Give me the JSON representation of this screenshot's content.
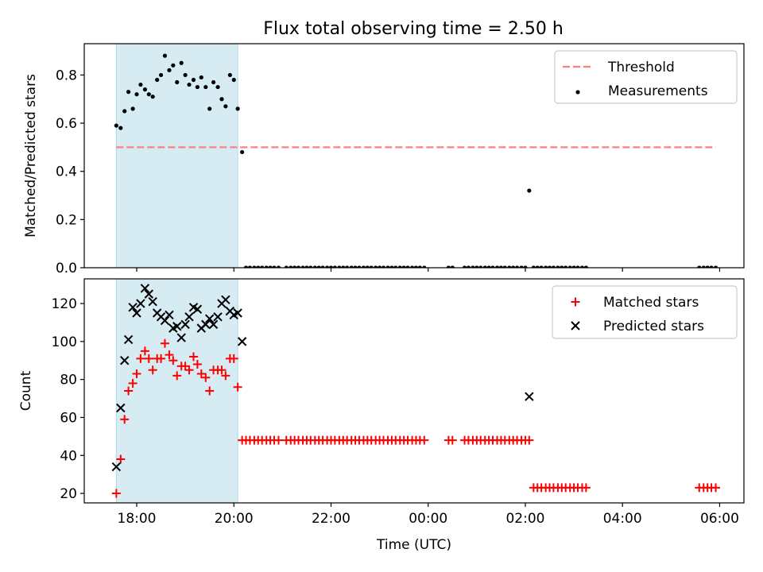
{
  "title": "Flux total observing time = 2.50 h",
  "colors": {
    "shade": "#add8e6",
    "threshold": "#ff7f7f",
    "measurements": "#000000",
    "matched": "#ff0000",
    "predicted": "#000000"
  },
  "chart_data": [
    {
      "type": "scatter",
      "ylabel": "Matched/Predicted stars",
      "xlim": [
        -1.08,
        12.5
      ],
      "ylim": [
        0,
        0.93
      ],
      "yticks": [
        "0.0",
        "0.2",
        "0.4",
        "0.6",
        "0.8"
      ],
      "ytick_values": [
        0,
        0.2,
        0.4,
        0.6,
        0.8
      ],
      "shaded_region": [
        -0.42,
        2.08
      ],
      "legend": {
        "placement": "top-right",
        "entries": [
          "Threshold",
          "Measurements"
        ]
      },
      "threshold": {
        "name": "Threshold",
        "value": 0.5,
        "x_range": [
          -0.42,
          11.92
        ]
      },
      "series": [
        {
          "name": "Measurements",
          "x": [
            -0.42,
            -0.33,
            -0.25,
            -0.17,
            -0.08,
            0,
            0.08,
            0.17,
            0.25,
            0.33,
            0.42,
            0.5,
            0.58,
            0.67,
            0.75,
            0.83,
            0.92,
            1,
            1.08,
            1.17,
            1.25,
            1.33,
            1.42,
            1.5,
            1.58,
            1.67,
            1.75,
            1.83,
            1.92,
            2,
            2.08,
            2.17,
            2.25,
            2.33,
            2.42,
            2.5,
            2.58,
            2.67,
            2.75,
            2.83,
            2.92,
            3.08,
            3.17,
            3.25,
            3.33,
            3.42,
            3.5,
            3.58,
            3.67,
            3.75,
            3.83,
            3.92,
            4,
            4.08,
            4.17,
            4.25,
            4.33,
            4.42,
            4.5,
            4.58,
            4.67,
            4.75,
            4.83,
            4.92,
            5,
            5.08,
            5.17,
            5.25,
            5.33,
            5.42,
            5.5,
            5.58,
            5.67,
            5.75,
            5.83,
            5.92,
            6.42,
            6.5,
            6.75,
            6.83,
            6.92,
            7,
            7.08,
            7.17,
            7.25,
            7.33,
            7.42,
            7.5,
            7.58,
            7.67,
            7.75,
            7.83,
            7.92,
            8,
            8.08,
            8.17,
            8.25,
            8.33,
            8.42,
            8.5,
            8.58,
            8.67,
            8.75,
            8.83,
            8.92,
            9,
            9.08,
            9.17,
            9.25,
            11.58,
            11.67,
            11.75,
            11.83,
            11.92
          ],
          "y": [
            0.59,
            0.58,
            0.65,
            0.73,
            0.66,
            0.72,
            0.76,
            0.74,
            0.72,
            0.71,
            0.78,
            0.8,
            0.88,
            0.82,
            0.84,
            0.77,
            0.85,
            0.8,
            0.76,
            0.78,
            0.75,
            0.79,
            0.75,
            0.66,
            0.77,
            0.75,
            0.7,
            0.67,
            0.8,
            0.78,
            0.66,
            0.48,
            0,
            0,
            0,
            0,
            0,
            0,
            0,
            0,
            0,
            0,
            0,
            0,
            0,
            0,
            0,
            0,
            0,
            0,
            0,
            0,
            0,
            0,
            0,
            0,
            0,
            0,
            0,
            0,
            0,
            0,
            0,
            0,
            0,
            0,
            0,
            0,
            0,
            0,
            0,
            0,
            0,
            0,
            0,
            0,
            0,
            0,
            0,
            0,
            0,
            0,
            0,
            0,
            0,
            0,
            0,
            0,
            0,
            0,
            0,
            0,
            0,
            0,
            0.32,
            0,
            0,
            0,
            0,
            0,
            0,
            0,
            0,
            0,
            0,
            0,
            0,
            0,
            0,
            0,
            0,
            0,
            0,
            0
          ]
        }
      ]
    },
    {
      "type": "scatter",
      "ylabel": "Count",
      "xlabel": "Time (UTC)",
      "xlim": [
        -1.08,
        12.5
      ],
      "ylim": [
        15,
        133
      ],
      "yticks": [
        "20",
        "40",
        "60",
        "80",
        "100",
        "120"
      ],
      "ytick_values": [
        20,
        40,
        60,
        80,
        100,
        120
      ],
      "xticks": [
        "18:00",
        "20:00",
        "22:00",
        "00:00",
        "02:00",
        "04:00",
        "06:00"
      ],
      "xtick_values": [
        0,
        2,
        4,
        6,
        8,
        10,
        12
      ],
      "shaded_region": [
        -0.42,
        2.08
      ],
      "legend": {
        "placement": "top-right",
        "entries": [
          "Matched stars",
          "Predicted stars"
        ]
      },
      "series": [
        {
          "name": "Matched stars",
          "x": [
            -0.42,
            -0.33,
            -0.25,
            -0.17,
            -0.08,
            0,
            0.08,
            0.17,
            0.25,
            0.33,
            0.42,
            0.5,
            0.58,
            0.67,
            0.75,
            0.83,
            0.92,
            1,
            1.08,
            1.17,
            1.25,
            1.33,
            1.42,
            1.5,
            1.58,
            1.67,
            1.75,
            1.83,
            1.92,
            2,
            2.08,
            2.17,
            2.25,
            2.33,
            2.42,
            2.5,
            2.58,
            2.67,
            2.75,
            2.83,
            2.92,
            3.08,
            3.17,
            3.25,
            3.33,
            3.42,
            3.5,
            3.58,
            3.67,
            3.75,
            3.83,
            3.92,
            4,
            4.08,
            4.17,
            4.25,
            4.33,
            4.42,
            4.5,
            4.58,
            4.67,
            4.75,
            4.83,
            4.92,
            5,
            5.08,
            5.17,
            5.25,
            5.33,
            5.42,
            5.5,
            5.58,
            5.67,
            5.75,
            5.83,
            5.92,
            6.42,
            6.5,
            6.75,
            6.83,
            6.92,
            7,
            7.08,
            7.17,
            7.25,
            7.33,
            7.42,
            7.5,
            7.58,
            7.67,
            7.75,
            7.83,
            7.92,
            8,
            8.08,
            8.17,
            8.25,
            8.33,
            8.42,
            8.5,
            8.58,
            8.67,
            8.75,
            8.83,
            8.92,
            9,
            9.08,
            9.17,
            9.25,
            11.58,
            11.67,
            11.75,
            11.83,
            11.92
          ],
          "y": [
            20,
            38,
            59,
            74,
            78,
            83,
            91,
            95,
            91,
            85,
            91,
            91,
            99,
            93,
            90,
            82,
            87,
            87,
            85,
            92,
            88,
            83,
            81,
            74,
            85,
            85,
            85,
            82,
            91,
            91,
            76,
            48,
            48,
            48,
            48,
            48,
            48,
            48,
            48,
            48,
            48,
            48,
            48,
            48,
            48,
            48,
            48,
            48,
            48,
            48,
            48,
            48,
            48,
            48,
            48,
            48,
            48,
            48,
            48,
            48,
            48,
            48,
            48,
            48,
            48,
            48,
            48,
            48,
            48,
            48,
            48,
            48,
            48,
            48,
            48,
            48,
            48,
            48,
            48,
            48,
            48,
            48,
            48,
            48,
            48,
            48,
            48,
            48,
            48,
            48,
            48,
            48,
            48,
            48,
            48,
            23,
            23,
            23,
            23,
            23,
            23,
            23,
            23,
            23,
            23,
            23,
            23,
            23,
            23,
            23,
            23,
            23,
            23,
            23
          ]
        },
        {
          "name": "Predicted stars",
          "x": [
            -0.42,
            -0.33,
            -0.25,
            -0.17,
            -0.08,
            0,
            0.08,
            0.17,
            0.25,
            0.33,
            0.42,
            0.5,
            0.58,
            0.67,
            0.75,
            0.83,
            0.92,
            1,
            1.08,
            1.17,
            1.25,
            1.33,
            1.42,
            1.5,
            1.58,
            1.67,
            1.75,
            1.83,
            1.92,
            2,
            2.08,
            2.17,
            8.08
          ],
          "y": [
            34,
            65,
            90,
            101,
            118,
            115,
            120,
            128,
            125,
            121,
            115,
            113,
            111,
            114,
            107,
            108,
            102,
            109,
            113,
            118,
            117,
            107,
            109,
            112,
            109,
            113,
            120,
            122,
            116,
            114,
            115,
            100,
            71
          ]
        }
      ]
    }
  ]
}
